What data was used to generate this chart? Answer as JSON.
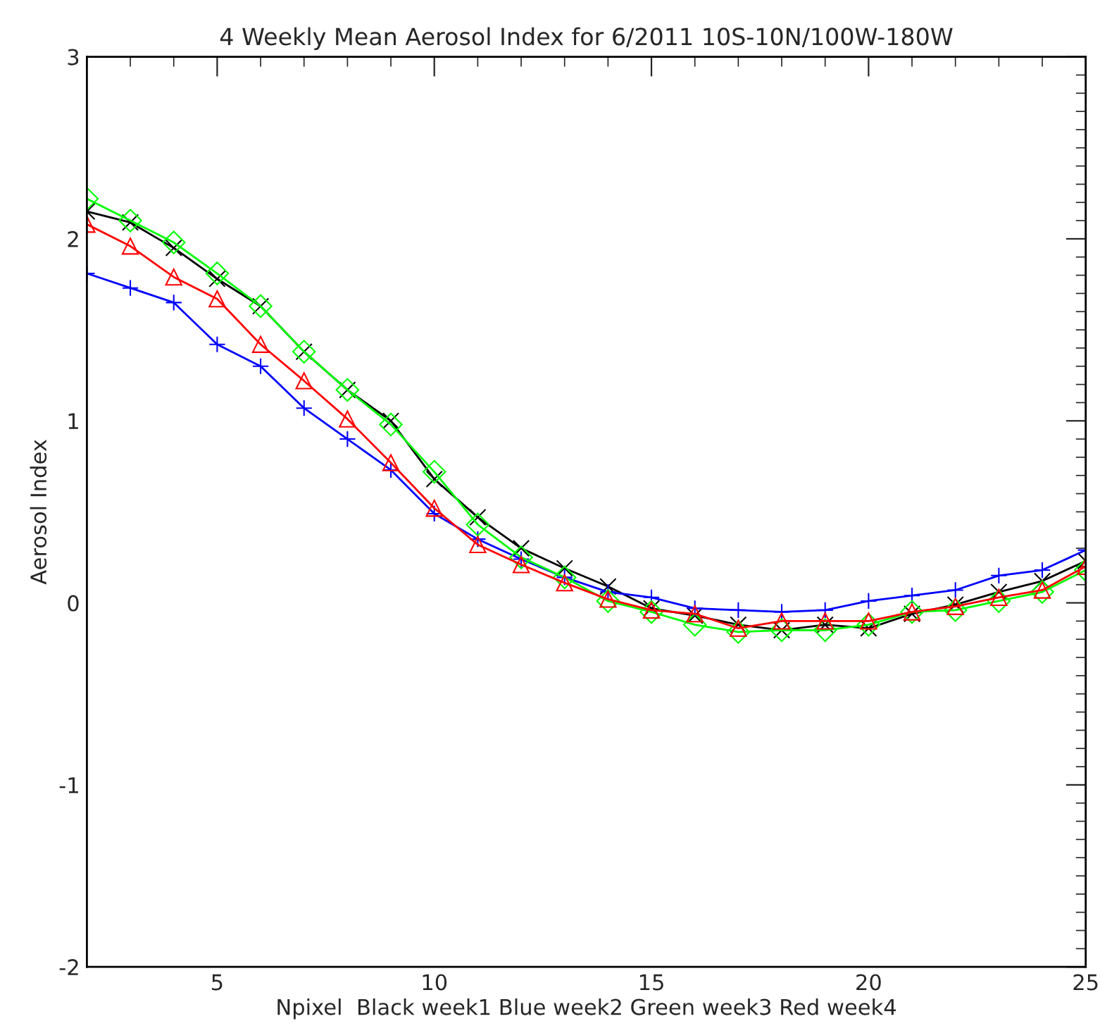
{
  "chart_data": {
    "type": "line",
    "title": "4 Weekly Mean Aerosol Index for 6/2011 10S-10N/100W-180W",
    "xlabel": "Npixel  Black week1 Blue week2 Green week3 Red week4",
    "ylabel": "Aerosol Index",
    "x": [
      2,
      3,
      4,
      5,
      6,
      7,
      8,
      9,
      10,
      11,
      12,
      13,
      14,
      15,
      16,
      17,
      18,
      19,
      20,
      21,
      22,
      23,
      24,
      25
    ],
    "series": [
      {
        "color": "#000000",
        "marker": "cross",
        "values": [
          2.15,
          2.09,
          1.95,
          1.78,
          1.63,
          1.38,
          1.17,
          1.0,
          0.68,
          0.47,
          0.3,
          0.19,
          0.09,
          -0.03,
          -0.07,
          -0.12,
          -0.15,
          -0.12,
          -0.14,
          -0.06,
          -0.01,
          0.06,
          0.12,
          0.23
        ]
      },
      {
        "color": "#0000ff",
        "marker": "plus",
        "values": [
          1.81,
          1.73,
          1.65,
          1.42,
          1.3,
          1.07,
          0.9,
          0.73,
          0.49,
          0.35,
          0.24,
          0.14,
          0.06,
          0.03,
          -0.03,
          -0.04,
          -0.05,
          -0.04,
          0.01,
          0.04,
          0.07,
          0.15,
          0.18,
          0.29
        ]
      },
      {
        "color": "#00ff00",
        "marker": "diamond",
        "values": [
          2.22,
          2.1,
          1.98,
          1.81,
          1.63,
          1.38,
          1.17,
          0.98,
          0.72,
          0.43,
          0.25,
          0.14,
          0.01,
          -0.05,
          -0.12,
          -0.16,
          -0.15,
          -0.15,
          -0.12,
          -0.05,
          -0.04,
          0.01,
          0.06,
          0.18
        ]
      },
      {
        "color": "#ff0000",
        "marker": "triangle",
        "values": [
          2.08,
          1.96,
          1.79,
          1.67,
          1.42,
          1.22,
          1.01,
          0.77,
          0.52,
          0.32,
          0.21,
          0.11,
          0.02,
          -0.04,
          -0.06,
          -0.14,
          -0.1,
          -0.1,
          -0.1,
          -0.05,
          -0.02,
          0.03,
          0.07,
          0.2
        ]
      }
    ],
    "xlim": [
      2,
      25
    ],
    "xticks": [
      5,
      10,
      15,
      20,
      25
    ],
    "ylim": [
      -2,
      3
    ],
    "yticks": [
      -2,
      -1,
      0,
      1,
      2,
      3
    ],
    "grid": false,
    "legend": false,
    "line_style": "solid"
  }
}
